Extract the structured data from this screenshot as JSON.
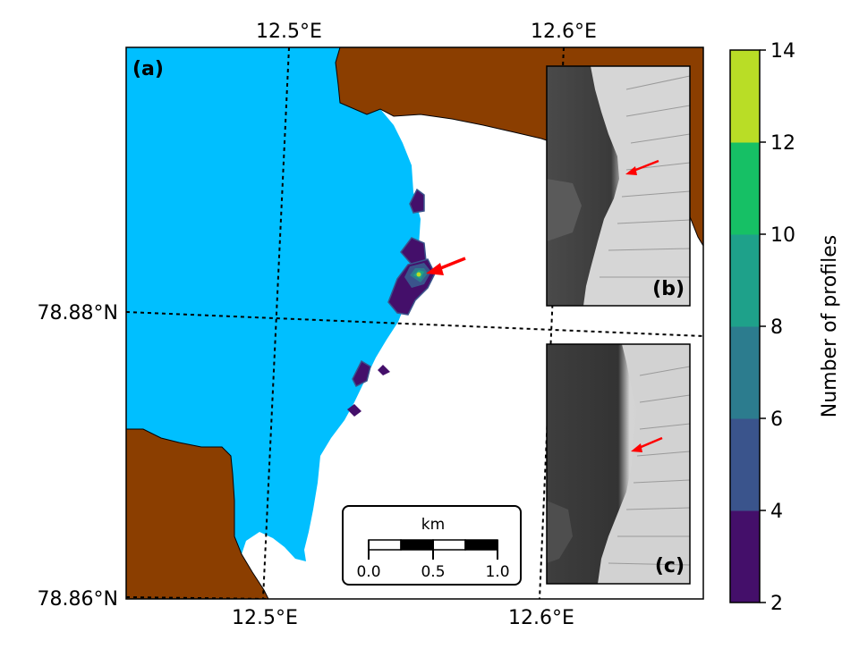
{
  "panels": {
    "main": "(a)",
    "inset_top": "(b)",
    "inset_bottom": "(c)"
  },
  "axes": {
    "top_lon_labels": [
      "12.5°E",
      "12.6°E"
    ],
    "bottom_lon_labels": [
      "12.5°E",
      "12.6°E"
    ],
    "left_lat_labels": [
      "78.88°N",
      "78.86°N"
    ]
  },
  "scalebar": {
    "unit": "km",
    "ticks": [
      "0.0",
      "0.5",
      "1.0"
    ]
  },
  "colorbar": {
    "title": "Number of profiles",
    "ticks": [
      "2",
      "4",
      "6",
      "8",
      "10",
      "12",
      "14"
    ],
    "colors": [
      "#440f6a",
      "#3a548c",
      "#2c7c8e",
      "#1ea18a",
      "#16c065",
      "#b9dd26"
    ]
  },
  "colors": {
    "ocean": "#00bfff",
    "land": "#8b3e00",
    "glacier": "#ffffff",
    "arrow": "#ff0000"
  }
}
